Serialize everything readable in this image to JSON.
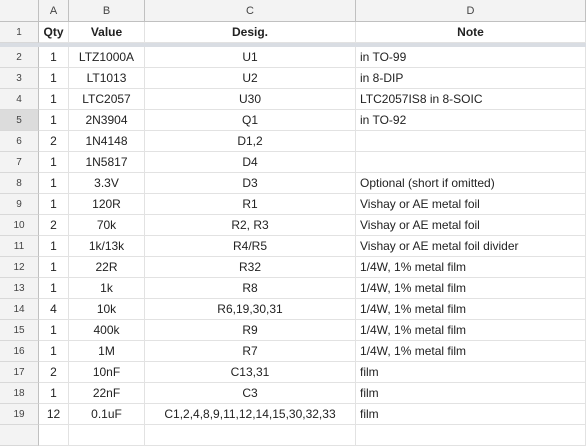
{
  "columns": [
    "A",
    "B",
    "C",
    "D"
  ],
  "header": {
    "qty": "Qty",
    "value": "Value",
    "desig": "Desig.",
    "note": "Note"
  },
  "rows": [
    {
      "num": "2",
      "qty": "1",
      "value": "LTZ1000A",
      "desig": "U1",
      "note": "in TO-99"
    },
    {
      "num": "3",
      "qty": "1",
      "value": "LT1013",
      "desig": "U2",
      "note": "in 8-DIP"
    },
    {
      "num": "4",
      "qty": "1",
      "value": "LTC2057",
      "desig": "U30",
      "note": "LTC2057IS8 in 8-SOIC"
    },
    {
      "num": "5",
      "qty": "1",
      "value": "2N3904",
      "desig": "Q1",
      "note": "in TO-92"
    },
    {
      "num": "6",
      "qty": "2",
      "value": "1N4148",
      "desig": "D1,2",
      "note": ""
    },
    {
      "num": "7",
      "qty": "1",
      "value": "1N5817",
      "desig": "D4",
      "note": ""
    },
    {
      "num": "8",
      "qty": "1",
      "value": "3.3V",
      "desig": "D3",
      "note": "Optional (short if omitted)"
    },
    {
      "num": "9",
      "qty": "1",
      "value": "120R",
      "desig": "R1",
      "note": "Vishay or AE metal foil"
    },
    {
      "num": "10",
      "qty": "2",
      "value": "70k",
      "desig": "R2, R3",
      "note": "Vishay or AE metal foil"
    },
    {
      "num": "11",
      "qty": "1",
      "value": "1k/13k",
      "desig": "R4/R5",
      "note": "Vishay or AE metal foil divider"
    },
    {
      "num": "12",
      "qty": "1",
      "value": "22R",
      "desig": "R32",
      "note": "1/4W, 1% metal film"
    },
    {
      "num": "13",
      "qty": "1",
      "value": "1k",
      "desig": "R8",
      "note": "1/4W, 1% metal film"
    },
    {
      "num": "14",
      "qty": "4",
      "value": "10k",
      "desig": "R6,19,30,31",
      "note": "1/4W, 1% metal film"
    },
    {
      "num": "15",
      "qty": "1",
      "value": "400k",
      "desig": "R9",
      "note": "1/4W, 1% metal film"
    },
    {
      "num": "16",
      "qty": "1",
      "value": "1M",
      "desig": "R7",
      "note": "1/4W, 1% metal film"
    },
    {
      "num": "17",
      "qty": "2",
      "value": "10nF",
      "desig": "C13,31",
      "note": "film"
    },
    {
      "num": "18",
      "qty": "1",
      "value": "22nF",
      "desig": "C3",
      "note": "film"
    },
    {
      "num": "19",
      "qty": "12",
      "value": "0.1uF",
      "desig": "C1,2,4,8,9,11,12,14,15,30,32,33",
      "note": "film"
    }
  ],
  "header_row_num": "1",
  "active_row": "5"
}
